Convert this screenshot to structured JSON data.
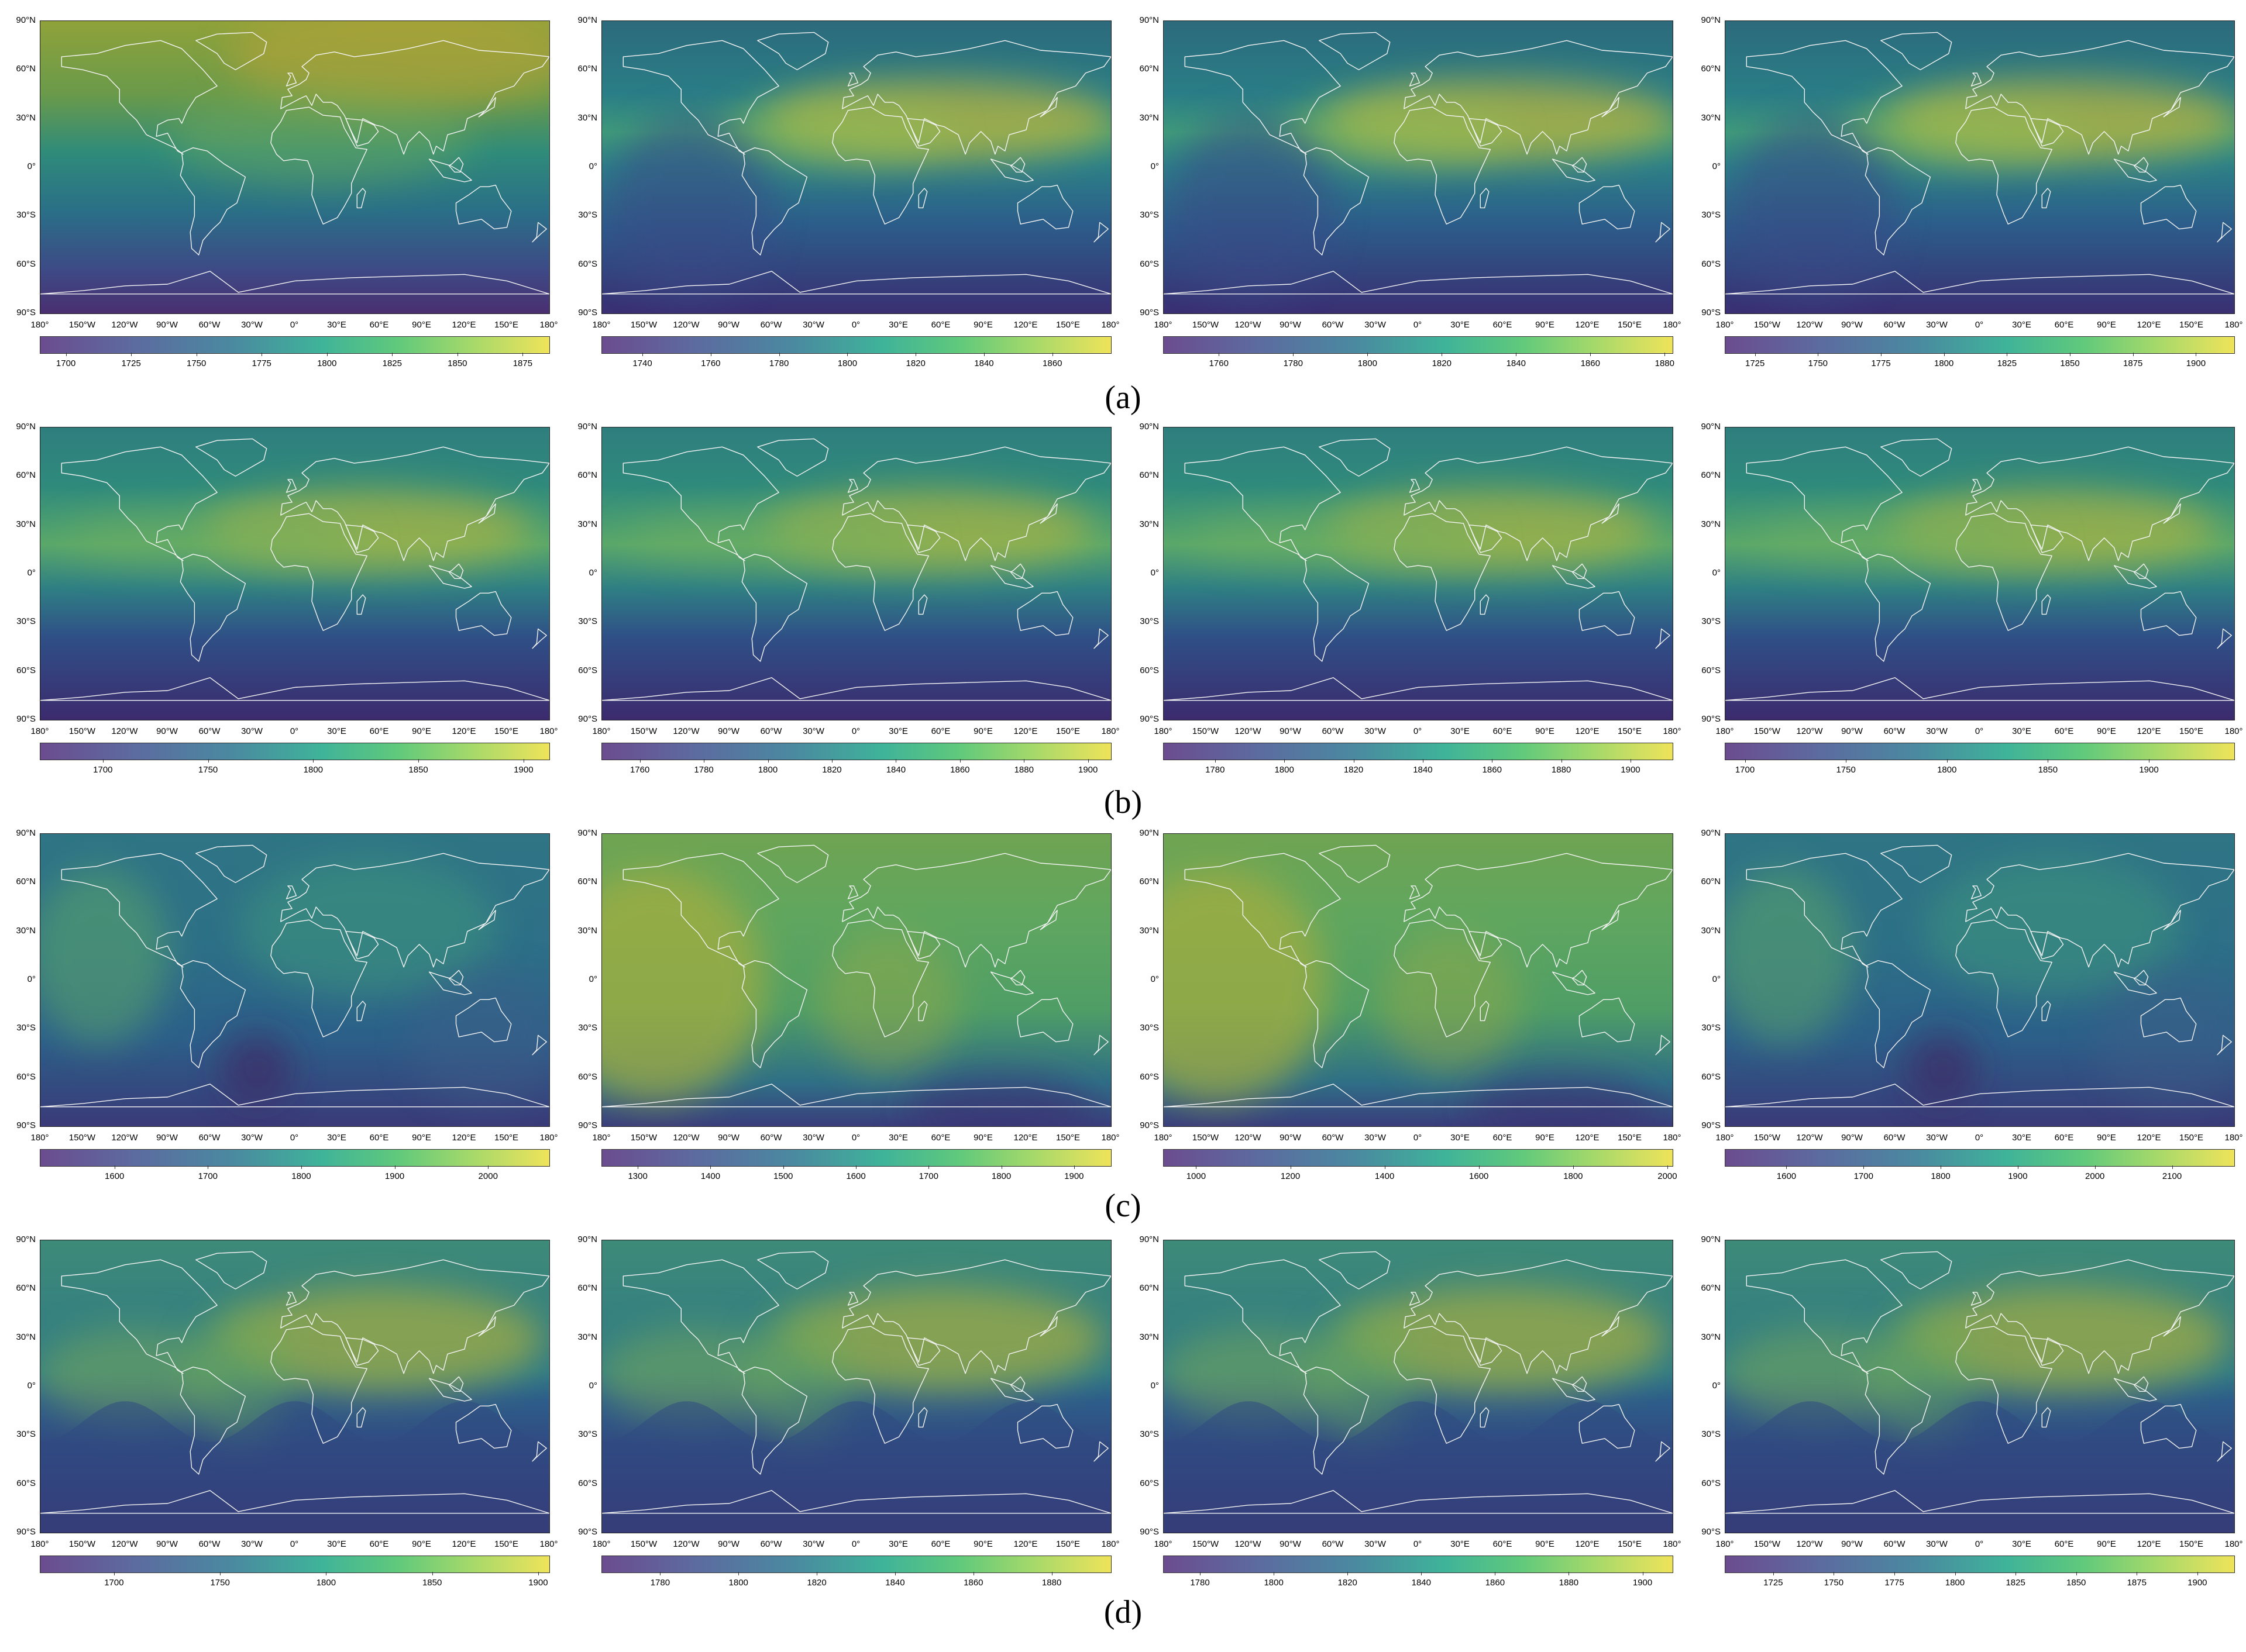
{
  "lat_labels": [
    "90°N",
    "60°N",
    "30°N",
    "0°",
    "30°S",
    "60°S",
    "90°S"
  ],
  "lon_labels": [
    "180°",
    "150°W",
    "120°W",
    "90°W",
    "60°W",
    "30°W",
    "0°",
    "30°E",
    "60°E",
    "90°E",
    "120°E",
    "150°E",
    "180°"
  ],
  "rows": [
    {
      "label": "(a)",
      "panels": [
        {
          "ticks": [
            "1700",
            "1725",
            "1750",
            "1775",
            "1800",
            "1825",
            "1850",
            "1875"
          ],
          "range": [
            1690,
            1885
          ],
          "pattern": "north-high"
        },
        {
          "ticks": [
            "1740",
            "1760",
            "1780",
            "1800",
            "1820",
            "1840",
            "1860"
          ],
          "range": [
            1728,
            1877
          ],
          "pattern": "subtropical-band"
        },
        {
          "ticks": [
            "1760",
            "1780",
            "1800",
            "1820",
            "1840",
            "1860",
            "1880"
          ],
          "range": [
            1745,
            1882
          ],
          "pattern": "subtropical-band"
        },
        {
          "ticks": [
            "1725",
            "1750",
            "1775",
            "1800",
            "1825",
            "1850",
            "1875",
            "1900"
          ],
          "range": [
            1713,
            1915
          ],
          "pattern": "subtropical-band"
        }
      ]
    },
    {
      "label": "(b)",
      "panels": [
        {
          "ticks": [
            "1700",
            "1750",
            "1800",
            "1850",
            "1900"
          ],
          "range": [
            1670,
            1912
          ],
          "pattern": "swath-band"
        },
        {
          "ticks": [
            "1760",
            "1780",
            "1800",
            "1820",
            "1840",
            "1860",
            "1880",
            "1900"
          ],
          "range": [
            1748,
            1907
          ],
          "pattern": "swath-band"
        },
        {
          "ticks": [
            "1780",
            "1800",
            "1820",
            "1840",
            "1860",
            "1880",
            "1900"
          ],
          "range": [
            1765,
            1912
          ],
          "pattern": "swath-band"
        },
        {
          "ticks": [
            "1700",
            "1750",
            "1800",
            "1850",
            "1900"
          ],
          "range": [
            1690,
            1942
          ],
          "pattern": "swath-band"
        }
      ]
    },
    {
      "label": "(c)",
      "panels": [
        {
          "ticks": [
            "1600",
            "1700",
            "1800",
            "1900",
            "2000"
          ],
          "range": [
            1520,
            2065
          ],
          "pattern": "smooth-blobs"
        },
        {
          "ticks": [
            "1300",
            "1400",
            "1500",
            "1600",
            "1700",
            "1800",
            "1900"
          ],
          "range": [
            1250,
            1950
          ],
          "pattern": "pacific-high"
        },
        {
          "ticks": [
            "1000",
            "1200",
            "1400",
            "1600",
            "1800",
            "2000"
          ],
          "range": [
            930,
            2010
          ],
          "pattern": "pacific-high"
        },
        {
          "ticks": [
            "1600",
            "1700",
            "1800",
            "1900",
            "2000",
            "2100"
          ],
          "range": [
            1520,
            2180
          ],
          "pattern": "smooth-blobs"
        }
      ]
    },
    {
      "label": "(d)",
      "panels": [
        {
          "ticks": [
            "1700",
            "1750",
            "1800",
            "1850",
            "1900"
          ],
          "range": [
            1665,
            1905
          ],
          "pattern": "orbit-wave"
        },
        {
          "ticks": [
            "1780",
            "1800",
            "1820",
            "1840",
            "1860",
            "1880"
          ],
          "range": [
            1765,
            1895
          ],
          "pattern": "orbit-wave"
        },
        {
          "ticks": [
            "1780",
            "1800",
            "1820",
            "1840",
            "1860",
            "1880",
            "1900"
          ],
          "range": [
            1770,
            1908
          ],
          "pattern": "orbit-wave"
        },
        {
          "ticks": [
            "1725",
            "1750",
            "1775",
            "1800",
            "1825",
            "1850",
            "1875",
            "1900"
          ],
          "range": [
            1705,
            1915
          ],
          "pattern": "orbit-wave"
        }
      ]
    }
  ]
}
